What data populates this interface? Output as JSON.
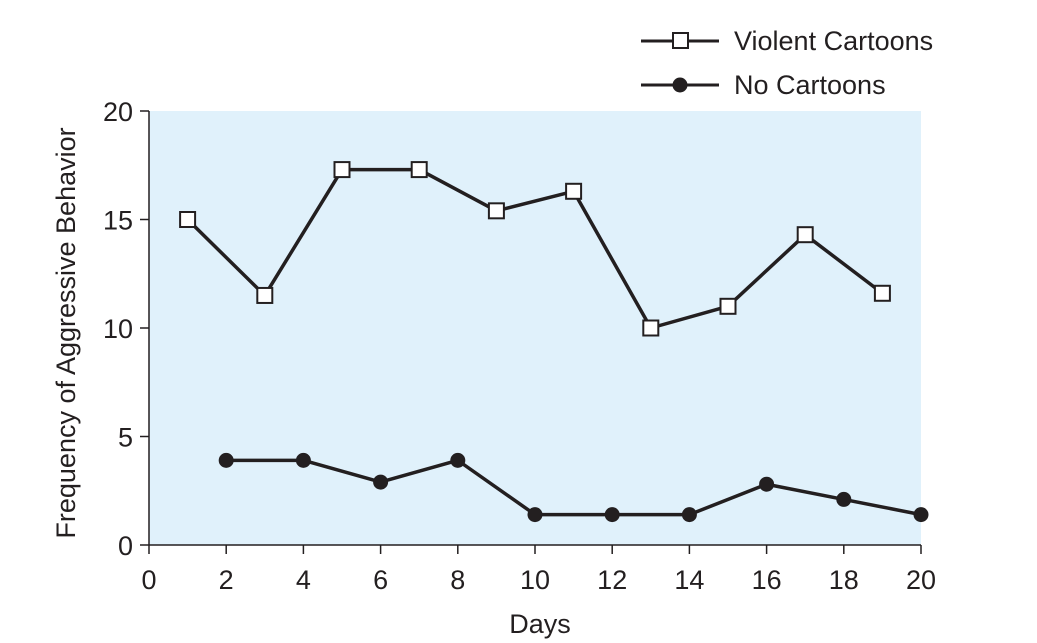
{
  "chart_data": {
    "type": "line",
    "title": "",
    "xlabel": "Days",
    "ylabel": "Frequency of Aggressive Behavior",
    "xlim": [
      0,
      20
    ],
    "ylim": [
      0,
      20
    ],
    "x_ticks": [
      "0",
      "2",
      "4",
      "6",
      "8",
      "10",
      "12",
      "14",
      "16",
      "18",
      "20"
    ],
    "y_ticks": [
      "0",
      "5",
      "10",
      "15",
      "20"
    ],
    "grid": false,
    "legend_position": "top-right",
    "colors": {
      "plot_background": "#e0f1fb",
      "line": "#231f20",
      "open_marker_fill": "#ffffff"
    },
    "series": [
      {
        "name": "Violent Cartoons",
        "marker": "open-square",
        "x": [
          1,
          3,
          5,
          7,
          9,
          11,
          13,
          15,
          17,
          19
        ],
        "y": [
          15.0,
          11.5,
          17.3,
          17.3,
          15.4,
          16.3,
          10.0,
          11.0,
          14.3,
          11.6
        ]
      },
      {
        "name": "No Cartoons",
        "marker": "filled-circle",
        "x": [
          2,
          4,
          6,
          8,
          10,
          12,
          14,
          16,
          18,
          20
        ],
        "y": [
          3.9,
          3.9,
          2.9,
          3.9,
          1.4,
          1.4,
          1.4,
          2.8,
          2.1,
          1.4
        ]
      }
    ]
  }
}
